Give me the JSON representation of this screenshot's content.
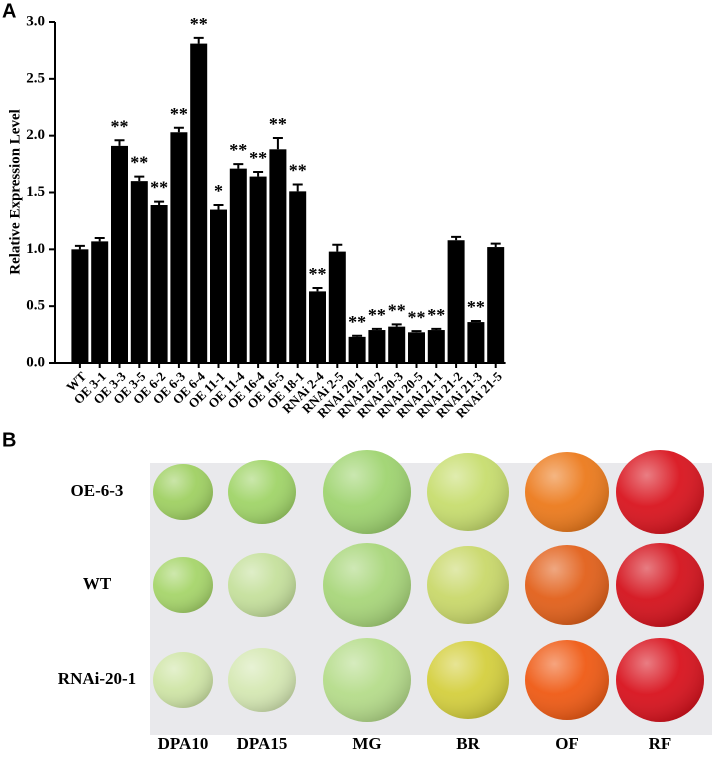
{
  "panel_labels": [
    "A",
    "B"
  ],
  "chart_data": {
    "type": "bar",
    "y_label": "Relative Expression Level",
    "categories": [
      "WT",
      "OE 3-1",
      "OE 3-3",
      "OE 3-5",
      "OE 6-2",
      "OE 6-3",
      "OE 6-4",
      "OE 11-1",
      "OE 11-4",
      "OE 16-4",
      "OE 16-5",
      "OE 18-1",
      "RNAi 2-4",
      "RNAi 2-5",
      "RNAi 20-1",
      "RNAi 20-2",
      "RNAi 20-3",
      "RNAi 20-5",
      "RNAi 21-1",
      "RNAi 21-2",
      "RNAi 21-3",
      "RNAi 21-5"
    ],
    "values": [
      1.0,
      1.07,
      1.91,
      1.6,
      1.39,
      2.03,
      2.81,
      1.35,
      1.71,
      1.64,
      1.88,
      1.51,
      0.63,
      0.98,
      0.23,
      0.29,
      0.32,
      0.27,
      0.29,
      1.08,
      0.36,
      1.02
    ],
    "errors": [
      0.03,
      0.03,
      0.05,
      0.04,
      0.03,
      0.04,
      0.05,
      0.04,
      0.04,
      0.04,
      0.1,
      0.06,
      0.03,
      0.06,
      0.01,
      0.01,
      0.02,
      0.01,
      0.01,
      0.03,
      0.01,
      0.03
    ],
    "significance": [
      null,
      null,
      "**",
      "**",
      "**",
      "**",
      "**",
      "*",
      "**",
      "**",
      "**",
      "**",
      "**",
      null,
      "**",
      "**",
      "**",
      "**",
      "**",
      null,
      "**",
      null
    ],
    "color": "#000000",
    "ylim": [
      0,
      3
    ],
    "yticks": [
      {
        "value": 0,
        "label": "0.0"
      },
      0.5,
      {
        "value": 1,
        "label": "1.0"
      },
      1.5,
      {
        "value": 2,
        "label": "2.0"
      },
      2.5,
      {
        "value": 3,
        "label": "3.0"
      }
    ],
    "grid": false
  },
  "photo": {
    "rows": [
      "OE-6-3",
      "WT",
      "RNAi-20-1"
    ],
    "columns": [
      "DPA10",
      "DPA15",
      "MG",
      "BR",
      "OF",
      "RF"
    ]
  }
}
